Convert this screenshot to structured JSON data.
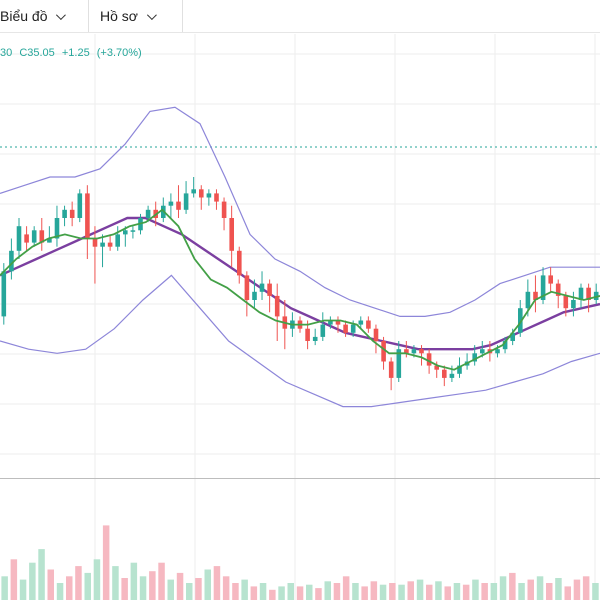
{
  "tabs": [
    {
      "label": "Biểu đồ"
    },
    {
      "label": "Hồ sơ"
    }
  ],
  "legend": {
    "open_fragment": "30",
    "close": "C35.05",
    "change": "+1.25",
    "change_pct": "(+3.70%)"
  },
  "colors": {
    "up": "#26a69a",
    "down": "#ef5350",
    "up_light": "#b7e3cf",
    "down_light": "#f6b8c1",
    "ma_short": "#43a047",
    "ma_long": "#7b3fa0",
    "band": "#8d86d9",
    "grid": "#eeeeee"
  },
  "chart_data": {
    "type": "candlestick",
    "indicators": [
      "bollinger-upper",
      "bollinger-lower",
      "ma-short",
      "ma-long"
    ],
    "grid": true,
    "candles": [
      [
        0.36,
        0.47,
        0.49,
        0.34
      ],
      [
        0.47,
        0.52,
        0.55,
        0.45
      ],
      [
        0.52,
        0.58,
        0.6,
        0.5
      ],
      [
        0.56,
        0.54,
        0.58,
        0.52
      ],
      [
        0.54,
        0.57,
        0.58,
        0.53
      ],
      [
        0.57,
        0.54,
        0.6,
        0.52
      ],
      [
        0.54,
        0.55,
        0.58,
        0.54
      ],
      [
        0.55,
        0.6,
        0.63,
        0.53
      ],
      [
        0.6,
        0.62,
        0.63,
        0.58
      ],
      [
        0.62,
        0.6,
        0.64,
        0.58
      ],
      [
        0.6,
        0.66,
        0.67,
        0.59
      ],
      [
        0.66,
        0.55,
        0.68,
        0.5
      ],
      [
        0.55,
        0.53,
        0.58,
        0.44
      ],
      [
        0.53,
        0.54,
        0.56,
        0.48
      ],
      [
        0.54,
        0.53,
        0.56,
        0.52
      ],
      [
        0.53,
        0.56,
        0.58,
        0.52
      ],
      [
        0.56,
        0.57,
        0.58,
        0.53
      ],
      [
        0.57,
        0.57,
        0.58,
        0.55
      ],
      [
        0.57,
        0.6,
        0.61,
        0.56
      ],
      [
        0.6,
        0.62,
        0.63,
        0.59
      ],
      [
        0.62,
        0.6,
        0.64,
        0.58
      ],
      [
        0.6,
        0.63,
        0.65,
        0.59
      ],
      [
        0.63,
        0.64,
        0.66,
        0.6
      ],
      [
        0.64,
        0.62,
        0.68,
        0.6
      ],
      [
        0.62,
        0.66,
        0.69,
        0.61
      ],
      [
        0.66,
        0.67,
        0.7,
        0.65
      ],
      [
        0.67,
        0.65,
        0.68,
        0.62
      ],
      [
        0.65,
        0.66,
        0.67,
        0.63
      ],
      [
        0.66,
        0.64,
        0.67,
        0.62
      ],
      [
        0.64,
        0.6,
        0.65,
        0.57
      ],
      [
        0.6,
        0.52,
        0.63,
        0.48
      ],
      [
        0.52,
        0.46,
        0.53,
        0.44
      ],
      [
        0.46,
        0.4,
        0.47,
        0.36
      ],
      [
        0.4,
        0.42,
        0.45,
        0.38
      ],
      [
        0.42,
        0.44,
        0.47,
        0.4
      ],
      [
        0.44,
        0.41,
        0.45,
        0.37
      ],
      [
        0.41,
        0.36,
        0.44,
        0.3
      ],
      [
        0.36,
        0.33,
        0.4,
        0.28
      ],
      [
        0.33,
        0.35,
        0.37,
        0.31
      ],
      [
        0.35,
        0.33,
        0.36,
        0.32
      ],
      [
        0.33,
        0.3,
        0.35,
        0.28
      ],
      [
        0.3,
        0.31,
        0.33,
        0.29
      ],
      [
        0.31,
        0.34,
        0.37,
        0.3
      ],
      [
        0.34,
        0.35,
        0.36,
        0.33
      ],
      [
        0.35,
        0.34,
        0.36,
        0.32
      ],
      [
        0.34,
        0.32,
        0.35,
        0.31
      ],
      [
        0.32,
        0.34,
        0.35,
        0.31
      ],
      [
        0.34,
        0.35,
        0.36,
        0.33
      ],
      [
        0.35,
        0.33,
        0.36,
        0.32
      ],
      [
        0.33,
        0.3,
        0.34,
        0.27
      ],
      [
        0.3,
        0.25,
        0.31,
        0.23
      ],
      [
        0.25,
        0.21,
        0.26,
        0.18
      ],
      [
        0.21,
        0.28,
        0.3,
        0.2
      ],
      [
        0.28,
        0.27,
        0.3,
        0.26
      ],
      [
        0.27,
        0.28,
        0.29,
        0.26
      ],
      [
        0.28,
        0.27,
        0.29,
        0.24
      ],
      [
        0.27,
        0.24,
        0.28,
        0.22
      ],
      [
        0.24,
        0.23,
        0.25,
        0.21
      ],
      [
        0.23,
        0.21,
        0.24,
        0.19
      ],
      [
        0.21,
        0.22,
        0.24,
        0.2
      ],
      [
        0.22,
        0.24,
        0.26,
        0.21
      ],
      [
        0.24,
        0.25,
        0.27,
        0.23
      ],
      [
        0.25,
        0.27,
        0.29,
        0.24
      ],
      [
        0.27,
        0.28,
        0.3,
        0.26
      ],
      [
        0.28,
        0.27,
        0.3,
        0.25
      ],
      [
        0.27,
        0.28,
        0.29,
        0.26
      ],
      [
        0.28,
        0.3,
        0.31,
        0.27
      ],
      [
        0.3,
        0.32,
        0.33,
        0.29
      ],
      [
        0.32,
        0.38,
        0.4,
        0.31
      ],
      [
        0.38,
        0.42,
        0.45,
        0.36
      ],
      [
        0.42,
        0.4,
        0.46,
        0.37
      ],
      [
        0.4,
        0.46,
        0.48,
        0.39
      ],
      [
        0.46,
        0.44,
        0.48,
        0.42
      ],
      [
        0.44,
        0.41,
        0.45,
        0.38
      ],
      [
        0.41,
        0.38,
        0.42,
        0.36
      ],
      [
        0.38,
        0.4,
        0.42,
        0.36
      ],
      [
        0.4,
        0.43,
        0.44,
        0.38
      ],
      [
        0.43,
        0.4,
        0.44,
        0.37
      ],
      [
        0.4,
        0.42,
        0.44,
        0.39
      ]
    ],
    "ma_short": [
      0.46,
      0.5,
      0.53,
      0.55,
      0.56,
      0.55,
      0.55,
      0.56,
      0.58,
      0.59,
      0.62,
      0.58,
      0.5,
      0.45,
      0.43,
      0.4,
      0.37,
      0.35,
      0.34,
      0.34,
      0.35,
      0.35,
      0.34,
      0.3,
      0.27,
      0.27,
      0.26,
      0.24,
      0.23,
      0.25,
      0.27,
      0.29,
      0.34,
      0.4,
      0.42,
      0.41,
      0.4,
      0.41
    ],
    "ma_long": [
      0.46,
      0.48,
      0.5,
      0.52,
      0.54,
      0.56,
      0.58,
      0.6,
      0.6,
      0.58,
      0.56,
      0.53,
      0.5,
      0.47,
      0.44,
      0.41,
      0.38,
      0.36,
      0.34,
      0.32,
      0.31,
      0.3,
      0.29,
      0.28,
      0.28,
      0.28,
      0.28,
      0.29,
      0.31,
      0.33,
      0.35,
      0.37,
      0.38,
      0.39
    ],
    "band_upper": [
      0.66,
      0.68,
      0.7,
      0.7,
      0.72,
      0.78,
      0.86,
      0.87,
      0.83,
      0.7,
      0.56,
      0.5,
      0.47,
      0.43,
      0.4,
      0.38,
      0.36,
      0.36,
      0.37,
      0.4,
      0.44,
      0.46,
      0.48,
      0.48,
      0.48
    ],
    "band_lower": [
      0.3,
      0.28,
      0.27,
      0.28,
      0.33,
      0.4,
      0.46,
      0.38,
      0.3,
      0.25,
      0.2,
      0.17,
      0.14,
      0.14,
      0.15,
      0.16,
      0.17,
      0.18,
      0.2,
      0.22,
      0.25,
      0.27
    ],
    "volume": [
      [
        0.14,
        1
      ],
      [
        0.24,
        0
      ],
      [
        0.12,
        1
      ],
      [
        0.22,
        1
      ],
      [
        0.3,
        1
      ],
      [
        0.18,
        0
      ],
      [
        0.1,
        1
      ],
      [
        0.14,
        0
      ],
      [
        0.2,
        0
      ],
      [
        0.16,
        1
      ],
      [
        0.24,
        1
      ],
      [
        0.44,
        0
      ],
      [
        0.2,
        1
      ],
      [
        0.13,
        0
      ],
      [
        0.22,
        1
      ],
      [
        0.14,
        1
      ],
      [
        0.17,
        0
      ],
      [
        0.22,
        0
      ],
      [
        0.12,
        1
      ],
      [
        0.16,
        0
      ],
      [
        0.1,
        1
      ],
      [
        0.13,
        0
      ],
      [
        0.18,
        1
      ],
      [
        0.2,
        0
      ],
      [
        0.14,
        0
      ],
      [
        0.1,
        0
      ],
      [
        0.12,
        1
      ],
      [
        0.08,
        0
      ],
      [
        0.1,
        1
      ],
      [
        0.06,
        0
      ],
      [
        0.08,
        1
      ],
      [
        0.1,
        1
      ],
      [
        0.08,
        0
      ],
      [
        0.09,
        1
      ],
      [
        0.07,
        0
      ],
      [
        0.11,
        1
      ],
      [
        0.1,
        0
      ],
      [
        0.14,
        0
      ],
      [
        0.1,
        1
      ],
      [
        0.08,
        0
      ],
      [
        0.11,
        0
      ],
      [
        0.09,
        1
      ],
      [
        0.1,
        0
      ],
      [
        0.09,
        1
      ],
      [
        0.11,
        0
      ],
      [
        0.12,
        1
      ],
      [
        0.09,
        0
      ],
      [
        0.11,
        1
      ],
      [
        0.08,
        0
      ],
      [
        0.1,
        1
      ],
      [
        0.09,
        0
      ],
      [
        0.12,
        1
      ],
      [
        0.1,
        0
      ],
      [
        0.1,
        1
      ],
      [
        0.14,
        1
      ],
      [
        0.16,
        0
      ],
      [
        0.1,
        1
      ],
      [
        0.12,
        0
      ],
      [
        0.14,
        1
      ],
      [
        0.1,
        0
      ],
      [
        0.13,
        1
      ],
      [
        0.08,
        0
      ],
      [
        0.12,
        0
      ],
      [
        0.14,
        0
      ],
      [
        0.1,
        1
      ]
    ]
  }
}
